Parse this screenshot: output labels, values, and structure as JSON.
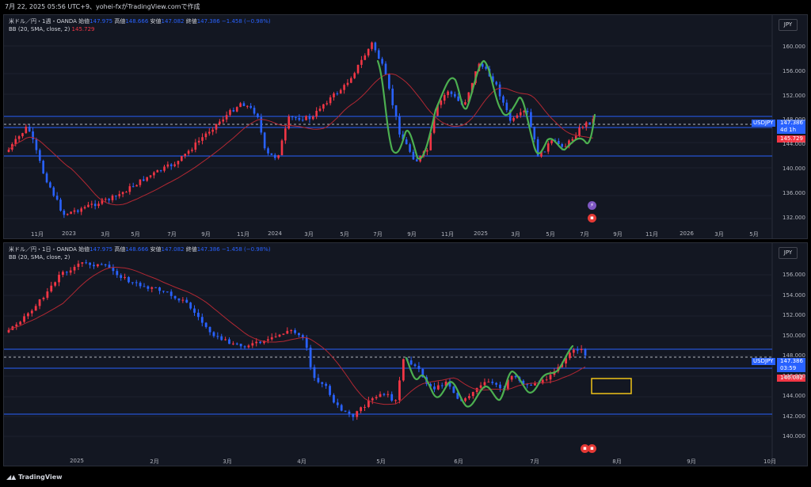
{
  "header": {
    "timestamp": "7月 22, 2025 05:56 UTC+9、yohei-fxがTradingView.comで作成"
  },
  "top_chart": {
    "legend_title": "米ドル／円・1週・OANDA",
    "open_label": "始値",
    "open_value": "147.975",
    "high_label": "高値",
    "high_value": "148.666",
    "low_label": "安値",
    "low_value": "147.082",
    "close_label": "終値",
    "close_value": "147.386",
    "change_value": "−1.458 (−0.98%)",
    "indicator_label": "BB (20, SMA, close, 2)",
    "indicator_value": "145.729",
    "currency_button": "JPY",
    "symbol_tag": "USDJPY",
    "price_tag": "147.386",
    "countdown_tag": "4d 1h",
    "bb_tag": "145.729",
    "y_ticks": [
      "160.000",
      "156.000",
      "152.000",
      "148.000",
      "144.000",
      "140.000",
      "136.000",
      "132.000"
    ],
    "x_ticks": [
      "11月",
      "2023",
      "3月",
      "5月",
      "7月",
      "9月",
      "11月",
      "2024",
      "3月",
      "5月",
      "7月",
      "9月",
      "11月",
      "2025",
      "3月",
      "5月",
      "7月",
      "9月",
      "11月",
      "2026",
      "3月",
      "5月"
    ]
  },
  "bottom_chart": {
    "legend_title": "米ドル／円・1日・OANDA",
    "open_label": "始値",
    "open_value": "147.975",
    "high_label": "高値",
    "high_value": "148.666",
    "low_label": "安値",
    "low_value": "147.082",
    "close_label": "終値",
    "close_value": "147.386",
    "change_value": "−1.458 (−0.98%)",
    "indicator_label": "BB (20, SMA, close, 2)",
    "currency_button": "JPY",
    "symbol_tag": "USDJPY",
    "price_tag": "147.386",
    "countdown_tag": "03:59",
    "bb_tag": "146.082",
    "y_ticks": [
      "156.000",
      "154.000",
      "152.000",
      "150.000",
      "148.000",
      "146.000",
      "144.000",
      "142.000",
      "140.000"
    ],
    "x_ticks": [
      "2025",
      "2月",
      "3月",
      "4月",
      "5月",
      "6月",
      "7月",
      "8月",
      "9月",
      "10月"
    ]
  },
  "footer": {
    "brand": "TradingView"
  },
  "colors": {
    "bull": "#f23645",
    "bear": "#2962ff",
    "bb_line": "#b22833",
    "wave": "#4caf50",
    "hline": "#2962ff",
    "box": "#f0c419",
    "background": "#131722"
  }
}
